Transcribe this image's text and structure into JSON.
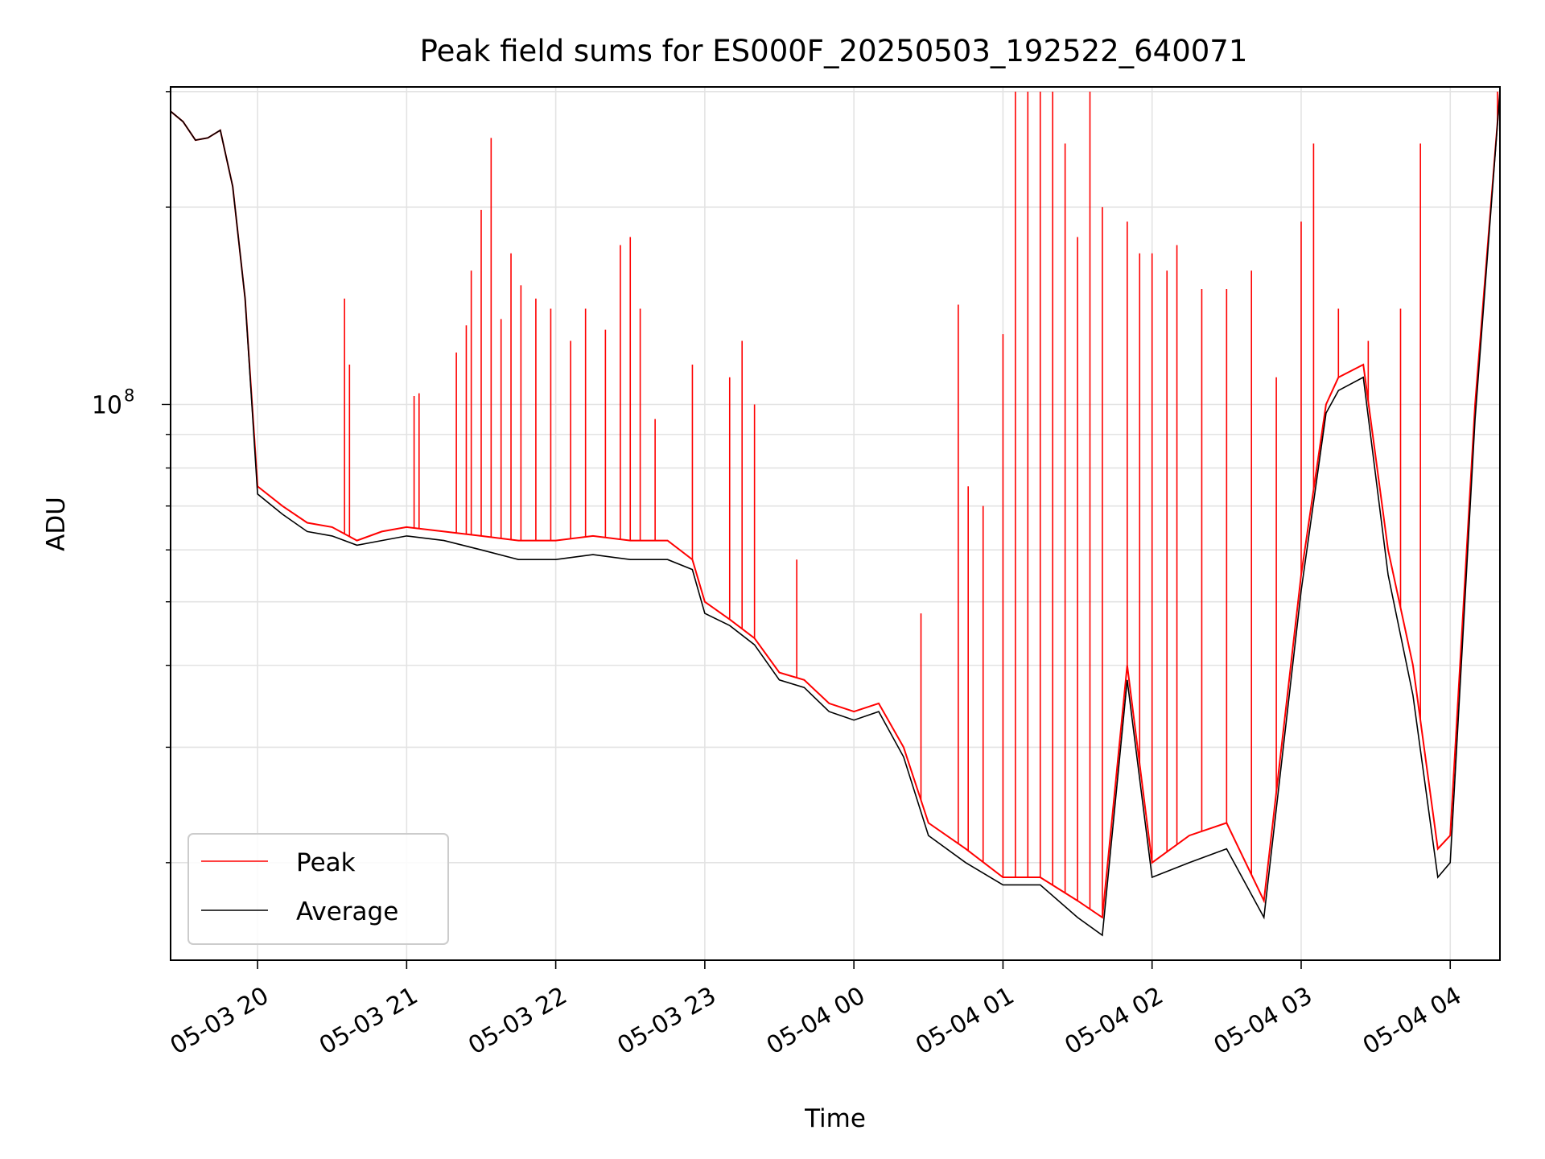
{
  "chart_data": {
    "type": "line",
    "title": "Peak field sums for ES000F_20250503_192522_640071",
    "xlabel": "Time",
    "ylabel": "ADU",
    "y_scale": "log",
    "ylim": [
      14200000,
      305000000
    ],
    "xlim": [
      "2025-05-03 19:25",
      "2025-05-04 04:20"
    ],
    "x_ticks": [
      "05-03 20",
      "05-03 21",
      "05-03 22",
      "05-03 23",
      "05-04 00",
      "05-04 01",
      "05-04 02",
      "05-04 03",
      "05-04 04"
    ],
    "y_tick_label": "10^8",
    "y_tick_value": 100000000,
    "grid": true,
    "legend_position": "lower left",
    "series": [
      {
        "name": "Peak",
        "color": "#ff0000",
        "baseline_x": [
          "2025-05-03 19:25",
          "2025-05-03 19:30",
          "2025-05-03 19:35",
          "2025-05-03 19:40",
          "2025-05-03 19:45",
          "2025-05-03 19:50",
          "2025-05-03 19:55",
          "2025-05-03 20:00",
          "2025-05-03 20:10",
          "2025-05-03 20:20",
          "2025-05-03 20:30",
          "2025-05-03 20:40",
          "2025-05-03 20:50",
          "2025-05-03 21:00",
          "2025-05-03 21:15",
          "2025-05-03 21:30",
          "2025-05-03 21:45",
          "2025-05-03 22:00",
          "2025-05-03 22:15",
          "2025-05-03 22:30",
          "2025-05-03 22:45",
          "2025-05-03 22:55",
          "2025-05-03 23:00",
          "2025-05-03 23:10",
          "2025-05-03 23:20",
          "2025-05-03 23:30",
          "2025-05-03 23:40",
          "2025-05-03 23:50",
          "2025-05-04 00:00",
          "2025-05-04 00:10",
          "2025-05-04 00:20",
          "2025-05-04 00:30",
          "2025-05-04 00:45",
          "2025-05-04 01:00",
          "2025-05-04 01:15",
          "2025-05-04 01:30",
          "2025-05-04 01:40",
          "2025-05-04 01:50",
          "2025-05-04 02:00",
          "2025-05-04 02:15",
          "2025-05-04 02:30",
          "2025-05-04 02:45",
          "2025-05-04 03:00",
          "2025-05-04 03:10",
          "2025-05-04 03:15",
          "2025-05-04 03:25",
          "2025-05-04 03:35",
          "2025-05-04 03:45",
          "2025-05-04 03:55",
          "2025-05-04 04:00",
          "2025-05-04 04:10",
          "2025-05-04 04:20"
        ],
        "baseline_y": [
          280000000,
          270000000,
          253000000,
          255000000,
          262000000,
          215000000,
          145000000,
          75000000,
          70000000,
          66000000,
          65000000,
          62000000,
          64000000,
          65000000,
          64000000,
          63000000,
          62000000,
          62000000,
          63000000,
          62000000,
          62000000,
          58000000,
          50000000,
          47000000,
          44000000,
          39000000,
          38000000,
          35000000,
          34000000,
          35000000,
          30000000,
          23000000,
          21000000,
          19000000,
          19000000,
          17500000,
          16500000,
          40000000,
          20000000,
          22000000,
          23000000,
          17500000,
          55000000,
          100000000,
          110000000,
          115000000,
          60000000,
          40000000,
          21000000,
          22000000,
          100000000,
          300000000
        ],
        "spikes": [
          [
            "2025-05-03 20:35",
            145000000
          ],
          [
            "2025-05-03 20:37",
            115000000
          ],
          [
            "2025-05-03 21:03",
            103000000
          ],
          [
            "2025-05-03 21:05",
            104000000
          ],
          [
            "2025-05-03 21:20",
            120000000
          ],
          [
            "2025-05-03 21:24",
            132000000
          ],
          [
            "2025-05-03 21:26",
            160000000
          ],
          [
            "2025-05-03 21:30",
            198000000
          ],
          [
            "2025-05-03 21:34",
            255000000
          ],
          [
            "2025-05-03 21:38",
            135000000
          ],
          [
            "2025-05-03 21:42",
            170000000
          ],
          [
            "2025-05-03 21:46",
            152000000
          ],
          [
            "2025-05-03 21:52",
            145000000
          ],
          [
            "2025-05-03 21:58",
            140000000
          ],
          [
            "2025-05-03 22:06",
            125000000
          ],
          [
            "2025-05-03 22:12",
            140000000
          ],
          [
            "2025-05-03 22:20",
            130000000
          ],
          [
            "2025-05-03 22:26",
            175000000
          ],
          [
            "2025-05-03 22:30",
            180000000
          ],
          [
            "2025-05-03 22:34",
            140000000
          ],
          [
            "2025-05-03 22:40",
            95000000
          ],
          [
            "2025-05-03 22:55",
            115000000
          ],
          [
            "2025-05-03 23:10",
            110000000
          ],
          [
            "2025-05-03 23:15",
            125000000
          ],
          [
            "2025-05-03 23:20",
            100000000
          ],
          [
            "2025-05-03 23:37",
            58000000
          ],
          [
            "2025-05-04 00:27",
            48000000
          ],
          [
            "2025-05-04 00:42",
            142000000
          ],
          [
            "2025-05-04 00:46",
            75000000
          ],
          [
            "2025-05-04 00:52",
            70000000
          ],
          [
            "2025-05-04 01:00",
            128000000
          ],
          [
            "2025-05-04 01:05",
            300000000
          ],
          [
            "2025-05-04 01:10",
            300000000
          ],
          [
            "2025-05-04 01:15",
            300000000
          ],
          [
            "2025-05-04 01:20",
            300000000
          ],
          [
            "2025-05-04 01:25",
            250000000
          ],
          [
            "2025-05-04 01:30",
            180000000
          ],
          [
            "2025-05-04 01:35",
            300000000
          ],
          [
            "2025-05-04 01:40",
            200000000
          ],
          [
            "2025-05-04 01:50",
            190000000
          ],
          [
            "2025-05-04 01:55",
            170000000
          ],
          [
            "2025-05-04 02:00",
            170000000
          ],
          [
            "2025-05-04 02:06",
            160000000
          ],
          [
            "2025-05-04 02:10",
            175000000
          ],
          [
            "2025-05-04 02:20",
            150000000
          ],
          [
            "2025-05-04 02:30",
            150000000
          ],
          [
            "2025-05-04 02:40",
            160000000
          ],
          [
            "2025-05-04 02:50",
            110000000
          ],
          [
            "2025-05-04 03:00",
            190000000
          ],
          [
            "2025-05-04 03:05",
            250000000
          ],
          [
            "2025-05-04 03:15",
            140000000
          ],
          [
            "2025-05-04 03:27",
            125000000
          ],
          [
            "2025-05-04 03:40",
            140000000
          ],
          [
            "2025-05-04 03:48",
            250000000
          ],
          [
            "2025-05-04 04:19",
            300000000
          ]
        ]
      },
      {
        "name": "Average",
        "color": "#000000",
        "x": [
          "2025-05-03 19:25",
          "2025-05-03 19:30",
          "2025-05-03 19:35",
          "2025-05-03 19:40",
          "2025-05-03 19:45",
          "2025-05-03 19:50",
          "2025-05-03 19:55",
          "2025-05-03 20:00",
          "2025-05-03 20:10",
          "2025-05-03 20:20",
          "2025-05-03 20:30",
          "2025-05-03 20:40",
          "2025-05-03 20:50",
          "2025-05-03 21:00",
          "2025-05-03 21:15",
          "2025-05-03 21:30",
          "2025-05-03 21:45",
          "2025-05-03 22:00",
          "2025-05-03 22:15",
          "2025-05-03 22:30",
          "2025-05-03 22:45",
          "2025-05-03 22:55",
          "2025-05-03 23:00",
          "2025-05-03 23:10",
          "2025-05-03 23:20",
          "2025-05-03 23:30",
          "2025-05-03 23:40",
          "2025-05-03 23:50",
          "2025-05-04 00:00",
          "2025-05-04 00:10",
          "2025-05-04 00:20",
          "2025-05-04 00:30",
          "2025-05-04 00:45",
          "2025-05-04 01:00",
          "2025-05-04 01:15",
          "2025-05-04 01:30",
          "2025-05-04 01:40",
          "2025-05-04 01:50",
          "2025-05-04 02:00",
          "2025-05-04 02:15",
          "2025-05-04 02:30",
          "2025-05-04 02:45",
          "2025-05-04 03:00",
          "2025-05-04 03:10",
          "2025-05-04 03:15",
          "2025-05-04 03:25",
          "2025-05-04 03:35",
          "2025-05-04 03:45",
          "2025-05-04 03:55",
          "2025-05-04 04:00",
          "2025-05-04 04:10",
          "2025-05-04 04:20"
        ],
        "y": [
          280000000,
          270000000,
          253000000,
          255000000,
          262000000,
          215000000,
          145000000,
          73000000,
          68000000,
          64000000,
          63000000,
          61000000,
          62000000,
          63000000,
          62000000,
          60000000,
          58000000,
          58000000,
          59000000,
          58000000,
          58000000,
          56000000,
          48000000,
          46000000,
          43000000,
          38000000,
          37000000,
          34000000,
          33000000,
          34000000,
          29000000,
          22000000,
          20000000,
          18500000,
          18500000,
          16500000,
          15500000,
          38000000,
          19000000,
          20000000,
          21000000,
          16500000,
          52000000,
          97000000,
          105000000,
          110000000,
          55000000,
          36000000,
          19000000,
          20000000,
          95000000,
          300000000
        ]
      }
    ]
  }
}
